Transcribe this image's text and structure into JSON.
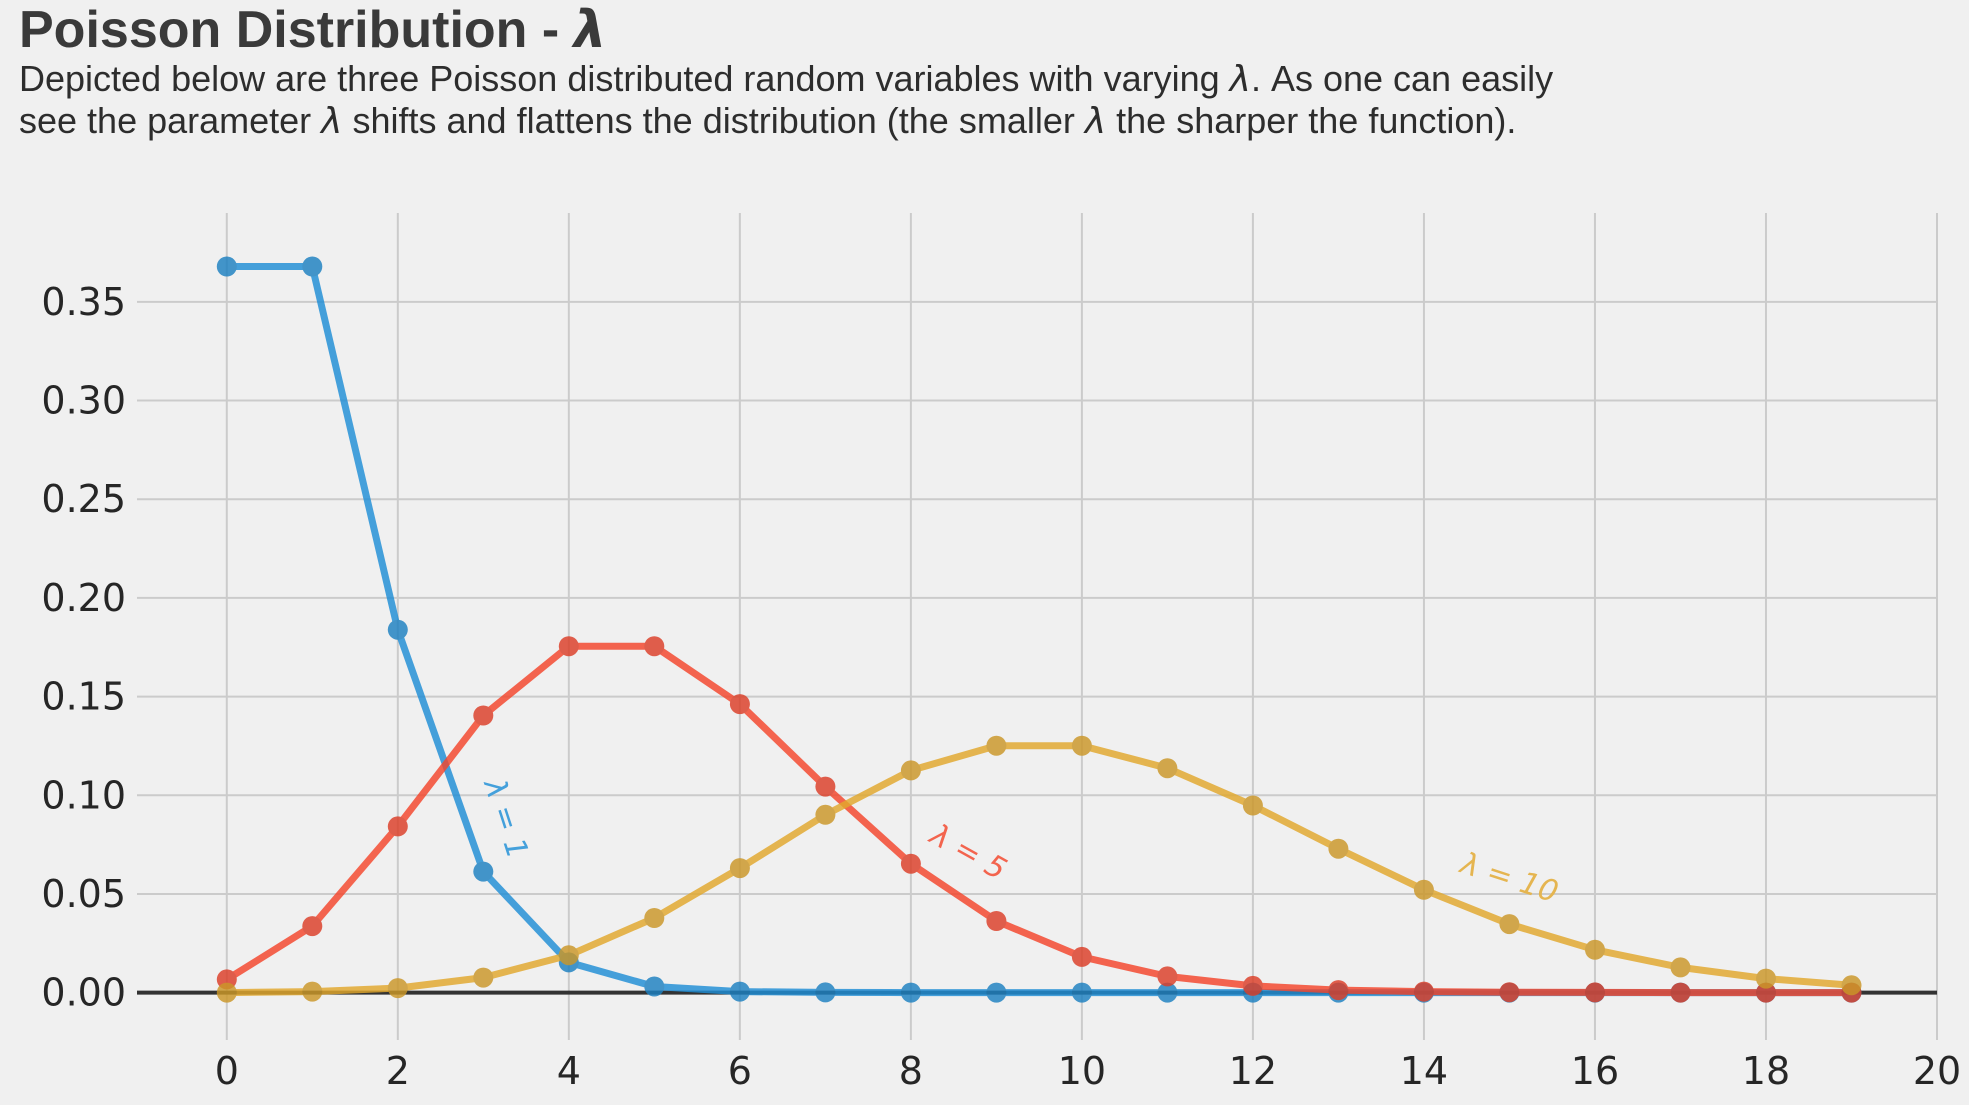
{
  "header": {
    "title_prefix": "Poisson Distribution - ",
    "title_symbol": "λ",
    "subtitle": {
      "l1a": "Depicted below are three Poisson distributed random variables with varying ",
      "l1sym": "λ",
      "l1b": ". As one can easily",
      "l2a": "see the parameter ",
      "l2sym1": "λ",
      "l2b": " shifts and flattens the distribution (the smaller ",
      "l2sym2": "λ",
      "l2c": " the sharper the function)."
    }
  },
  "chart_data": {
    "type": "line",
    "title": "Poisson Distribution - λ",
    "xlabel": "",
    "ylabel": "",
    "background_color": "#f0f0f0",
    "grid": true,
    "grid_color": "#cbcbcb",
    "zero_line_color": "#333333",
    "legend": "inline rotated annotations along each curve",
    "xlim": [
      -1.05,
      20.0
    ],
    "ylim": [
      -0.024,
      0.395
    ],
    "xticks": [
      0,
      2,
      4,
      6,
      8,
      10,
      12,
      14,
      16,
      18,
      20
    ],
    "xticklabels": [
      "0",
      "2",
      "4",
      "6",
      "8",
      "10",
      "12",
      "14",
      "16",
      "18",
      "20"
    ],
    "yticks": [
      0.0,
      0.05,
      0.1,
      0.15,
      0.2,
      0.25,
      0.3,
      0.35
    ],
    "yticklabels": [
      "0.00",
      "0.05",
      "0.10",
      "0.15",
      "0.20",
      "0.25",
      "0.30",
      "0.35"
    ],
    "x": [
      0,
      1,
      2,
      3,
      4,
      5,
      6,
      7,
      8,
      9,
      10,
      11,
      12,
      13,
      14,
      15,
      16,
      17,
      18,
      19
    ],
    "series": [
      {
        "name": "lambda-1",
        "lambda": 1,
        "color": "#1f8ed6",
        "label_color": "#44a0db",
        "values": [
          0.3679,
          0.3679,
          0.1839,
          0.0613,
          0.0153,
          0.0031,
          0.0005,
          0.0001,
          0.0,
          0.0,
          0.0,
          0.0,
          0.0,
          0.0,
          0.0,
          0.0,
          0.0,
          0.0,
          0.0,
          0.0
        ]
      },
      {
        "name": "lambda-5",
        "lambda": 5,
        "color": "#f4452b",
        "label_color": "#f3644e",
        "values": [
          0.0067,
          0.0337,
          0.0842,
          0.1404,
          0.1755,
          0.1755,
          0.1462,
          0.1044,
          0.0653,
          0.0363,
          0.0181,
          0.0082,
          0.0034,
          0.0013,
          0.0005,
          0.0002,
          0.0001,
          0.0,
          0.0,
          0.0
        ]
      },
      {
        "name": "lambda-10",
        "lambda": 10,
        "color": "#e2a82c",
        "label_color": "#e5b550",
        "values": [
          0.0,
          0.0005,
          0.0023,
          0.0076,
          0.0189,
          0.0378,
          0.0631,
          0.0901,
          0.1126,
          0.1251,
          0.1251,
          0.1137,
          0.0948,
          0.0729,
          0.0521,
          0.0347,
          0.0217,
          0.0128,
          0.0071,
          0.0037
        ]
      }
    ],
    "annotations": [
      {
        "label": "λ = 1",
        "series": "lambda-1",
        "x": 3.26,
        "y": 0.088,
        "rotation": 72,
        "color": "#44a0db"
      },
      {
        "label": "λ = 5",
        "series": "lambda-5",
        "x": 8.67,
        "y": 0.071,
        "rotation": 29,
        "color": "#f3644e"
      },
      {
        "label": "λ = 10",
        "series": "lambda-10",
        "x": 15.0,
        "y": 0.058,
        "rotation": 18,
        "color": "#e5b550"
      }
    ]
  }
}
